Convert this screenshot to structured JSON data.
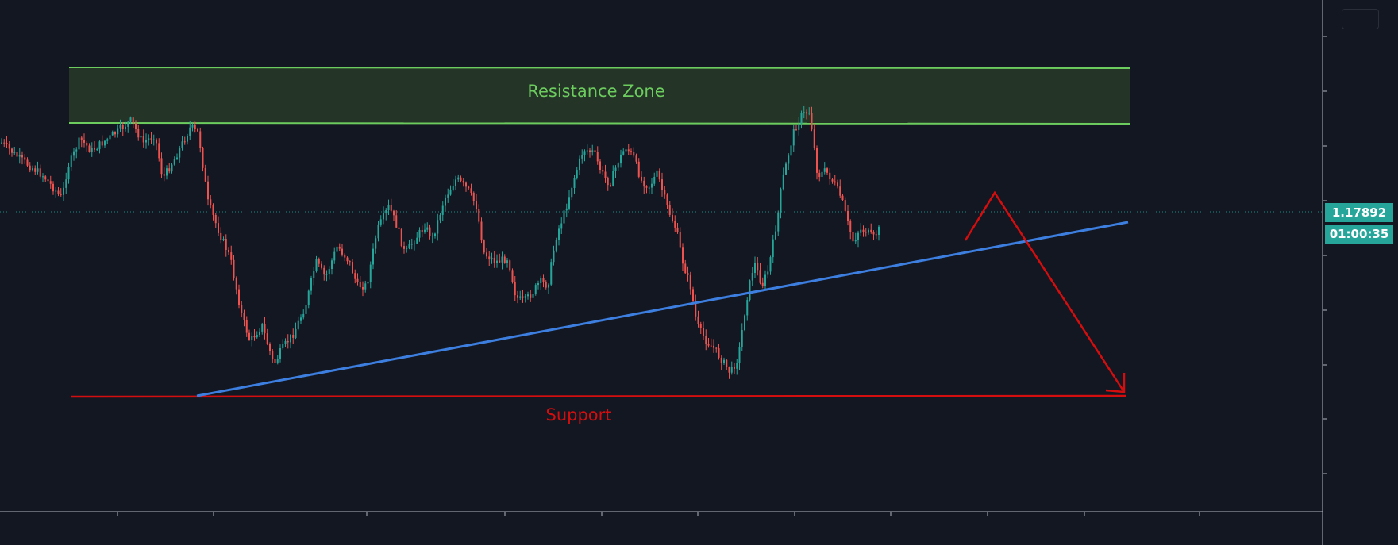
{
  "app": {
    "theme": "dark",
    "background": "#131722"
  },
  "chart_data": {
    "type": "candlestick",
    "title": "",
    "xlabel": "",
    "ylabel": "",
    "last_price": "1.17892",
    "countdown": "01:00:35",
    "bull_color": "#26a69a",
    "bear_color": "#ef5350",
    "annotations": {
      "resistance": {
        "label": "Resistance Zone",
        "color": "#6ccc5e",
        "fill": "#243427"
      },
      "support": {
        "label": "Support",
        "color": "#d40e0e"
      },
      "trendline": {
        "color": "#3d7fe0"
      },
      "forecast": {
        "color": "#d40e0e",
        "direction": "down"
      }
    },
    "price_path": [
      [
        0,
        178
      ],
      [
        25,
        200
      ],
      [
        55,
        222
      ],
      [
        78,
        250
      ],
      [
        85,
        212
      ],
      [
        101,
        175
      ],
      [
        115,
        190
      ],
      [
        140,
        172
      ],
      [
        165,
        152
      ],
      [
        180,
        180
      ],
      [
        195,
        170
      ],
      [
        205,
        225
      ],
      [
        220,
        200
      ],
      [
        240,
        160
      ],
      [
        250,
        168
      ],
      [
        262,
        255
      ],
      [
        275,
        290
      ],
      [
        290,
        325
      ],
      [
        305,
        400
      ],
      [
        315,
        430
      ],
      [
        330,
        410
      ],
      [
        345,
        460
      ],
      [
        355,
        440
      ],
      [
        370,
        420
      ],
      [
        385,
        385
      ],
      [
        398,
        330
      ],
      [
        410,
        350
      ],
      [
        425,
        310
      ],
      [
        440,
        330
      ],
      [
        450,
        360
      ],
      [
        462,
        360
      ],
      [
        475,
        290
      ],
      [
        490,
        260
      ],
      [
        500,
        285
      ],
      [
        510,
        320
      ],
      [
        520,
        305
      ],
      [
        535,
        285
      ],
      [
        545,
        300
      ],
      [
        560,
        250
      ],
      [
        575,
        225
      ],
      [
        590,
        240
      ],
      [
        600,
        260
      ],
      [
        610,
        320
      ],
      [
        625,
        330
      ],
      [
        640,
        325
      ],
      [
        650,
        375
      ],
      [
        660,
        380
      ],
      [
        670,
        370
      ],
      [
        680,
        355
      ],
      [
        690,
        360
      ],
      [
        700,
        300
      ],
      [
        712,
        265
      ],
      [
        722,
        228
      ],
      [
        735,
        188
      ],
      [
        748,
        192
      ],
      [
        758,
        218
      ],
      [
        768,
        232
      ],
      [
        778,
        205
      ],
      [
        788,
        185
      ],
      [
        798,
        198
      ],
      [
        808,
        228
      ],
      [
        818,
        235
      ],
      [
        828,
        218
      ],
      [
        840,
        260
      ],
      [
        852,
        290
      ],
      [
        860,
        330
      ],
      [
        870,
        362
      ],
      [
        878,
        410
      ],
      [
        890,
        430
      ],
      [
        900,
        440
      ],
      [
        910,
        455
      ],
      [
        920,
        470
      ],
      [
        930,
        450
      ],
      [
        940,
        380
      ],
      [
        950,
        330
      ],
      [
        960,
        360
      ],
      [
        968,
        340
      ],
      [
        980,
        270
      ],
      [
        985,
        230
      ],
      [
        992,
        200
      ],
      [
        1000,
        165
      ],
      [
        1010,
        145
      ],
      [
        1020,
        140
      ],
      [
        1030,
        222
      ],
      [
        1040,
        215
      ],
      [
        1050,
        230
      ],
      [
        1060,
        250
      ],
      [
        1068,
        282
      ],
      [
        1075,
        305
      ],
      [
        1082,
        290
      ],
      [
        1090,
        290
      ],
      [
        1100,
        300
      ],
      [
        1108,
        288
      ]
    ]
  }
}
